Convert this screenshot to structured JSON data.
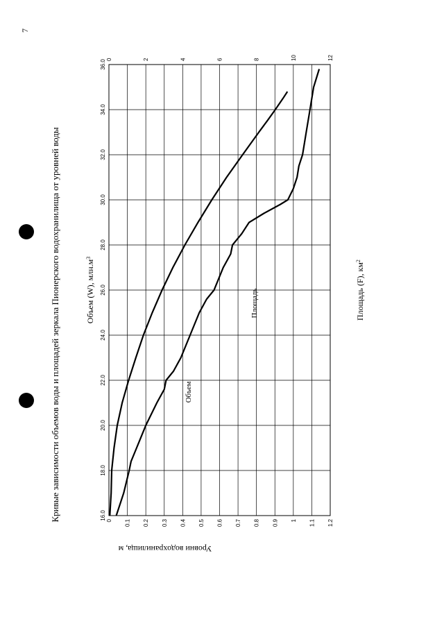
{
  "page": {
    "page_number": "7",
    "title": "Кривые зависимости объемов воды и площадей зеркала Пионерского водохранилища от уровней воды"
  },
  "chart_data": {
    "type": "line",
    "title": "Кривые зависимости объемов воды и площадей зеркала Пионерского водохранилища от уровней воды",
    "x_axis": {
      "label": "Уровни водохранилища, м",
      "range": [
        16.0,
        36.0
      ],
      "ticks": [
        "16.0",
        "18.0",
        "20.0",
        "22.0",
        "24.0",
        "26.0",
        "28.0",
        "30.0",
        "32.0",
        "34.0",
        "36.0"
      ]
    },
    "y_axis_volume": {
      "label": "Объем (W),  млн.м³",
      "label_text": "Объем (W),  млн.м",
      "label_sup": "3",
      "range": [
        0,
        12
      ],
      "ticks": [
        "0",
        "2",
        "4",
        "6",
        "8",
        "10",
        "12"
      ]
    },
    "y_axis_area": {
      "label": "Площадь (F), км²",
      "label_text": "Площадь (F), км",
      "label_sup": "2",
      "range": [
        0,
        1.2
      ],
      "ticks": [
        "0",
        "0.1",
        "0.2",
        "0.3",
        "0.4",
        "0.5",
        "0.6",
        "0.7",
        "0.8",
        "0.9",
        "1",
        "1.1",
        "1.2"
      ]
    },
    "grid": true,
    "series": [
      {
        "name": "Объем",
        "axis": "volume",
        "points": [
          [
            16.0,
            0.05
          ],
          [
            17.0,
            0.12
          ],
          [
            18.0,
            0.15
          ],
          [
            19.0,
            0.28
          ],
          [
            20.0,
            0.45
          ],
          [
            21.0,
            0.72
          ],
          [
            22.0,
            1.07
          ],
          [
            23.0,
            1.46
          ],
          [
            24.0,
            1.87
          ],
          [
            25.0,
            2.35
          ],
          [
            26.0,
            2.88
          ],
          [
            27.0,
            3.47
          ],
          [
            28.0,
            4.12
          ],
          [
            29.0,
            4.83
          ],
          [
            30.0,
            5.58
          ],
          [
            31.0,
            6.38
          ],
          [
            32.0,
            7.25
          ],
          [
            33.0,
            8.13
          ],
          [
            33.5,
            8.58
          ],
          [
            34.0,
            9.02
          ],
          [
            34.5,
            9.44
          ],
          [
            34.8,
            9.68
          ]
        ]
      },
      {
        "name": "Площадь",
        "axis": "area",
        "points": [
          [
            16.0,
            0.04
          ],
          [
            17.0,
            0.08
          ],
          [
            18.0,
            0.11
          ],
          [
            18.4,
            0.12
          ],
          [
            19.0,
            0.15
          ],
          [
            20.0,
            0.2
          ],
          [
            21.0,
            0.26
          ],
          [
            21.6,
            0.3
          ],
          [
            22.0,
            0.31
          ],
          [
            22.4,
            0.35
          ],
          [
            23.0,
            0.39
          ],
          [
            24.0,
            0.44
          ],
          [
            24.4,
            0.46
          ],
          [
            25.0,
            0.49
          ],
          [
            25.6,
            0.53
          ],
          [
            26.0,
            0.57
          ],
          [
            27.0,
            0.62
          ],
          [
            27.6,
            0.66
          ],
          [
            28.0,
            0.67
          ],
          [
            28.5,
            0.72
          ],
          [
            29.0,
            0.76
          ],
          [
            29.4,
            0.84
          ],
          [
            29.8,
            0.93
          ],
          [
            30.0,
            0.97
          ],
          [
            30.5,
            1.0
          ],
          [
            31.0,
            1.02
          ],
          [
            31.5,
            1.03
          ],
          [
            32.0,
            1.05
          ],
          [
            33.0,
            1.07
          ],
          [
            34.0,
            1.09
          ],
          [
            35.0,
            1.11
          ],
          [
            35.8,
            1.14
          ]
        ]
      }
    ],
    "annotations": [
      "Объем",
      "Площадь"
    ]
  }
}
